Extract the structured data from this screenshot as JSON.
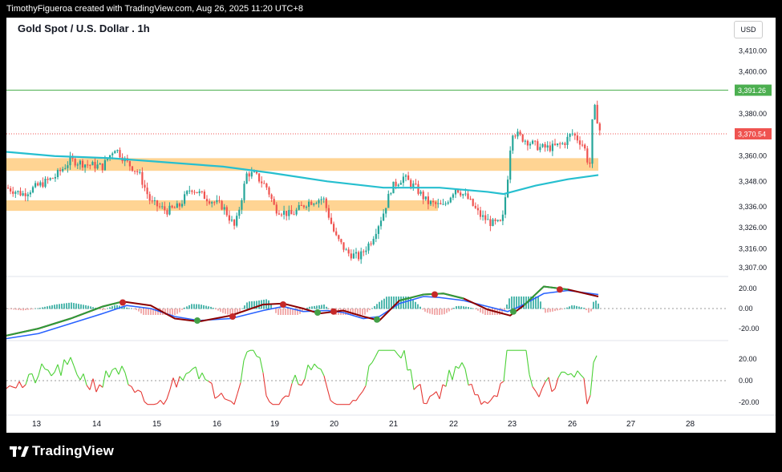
{
  "header": {
    "attribution": "TimothyFigueroa created with TradingView.com, Aug 26, 2025 11:20 UTC+8"
  },
  "chart": {
    "title": "Gold Spot / U.S. Dollar . 1h",
    "currency": "USD",
    "price_axis": [
      "3,410.00",
      "3,400.00",
      "3,391.26",
      "3,380.00",
      "3,370.54",
      "3,360.00",
      "3,348.00",
      "3,336.00",
      "3,326.00",
      "3,316.00",
      "3,307.00"
    ],
    "price_labels": {
      "high_line": "3,391.26",
      "last_price": "3,370.54"
    },
    "colors": {
      "up": "#26a69a",
      "down": "#ef5350",
      "ma": "#26bfcf",
      "zone": "#ffcc80",
      "high_line": "#4caf50",
      "last_line": "#ef5350"
    }
  },
  "indicator1": {
    "axis": [
      "20.00",
      "0.00",
      "-20.00"
    ]
  },
  "indicator2": {
    "axis": [
      "20.00",
      "0.00",
      "-20.00"
    ]
  },
  "time_axis": [
    "13",
    "14",
    "15",
    "16",
    "19",
    "20",
    "21",
    "22",
    "23",
    "26",
    "27",
    "28"
  ],
  "footer": {
    "brand": "TradingView"
  }
}
